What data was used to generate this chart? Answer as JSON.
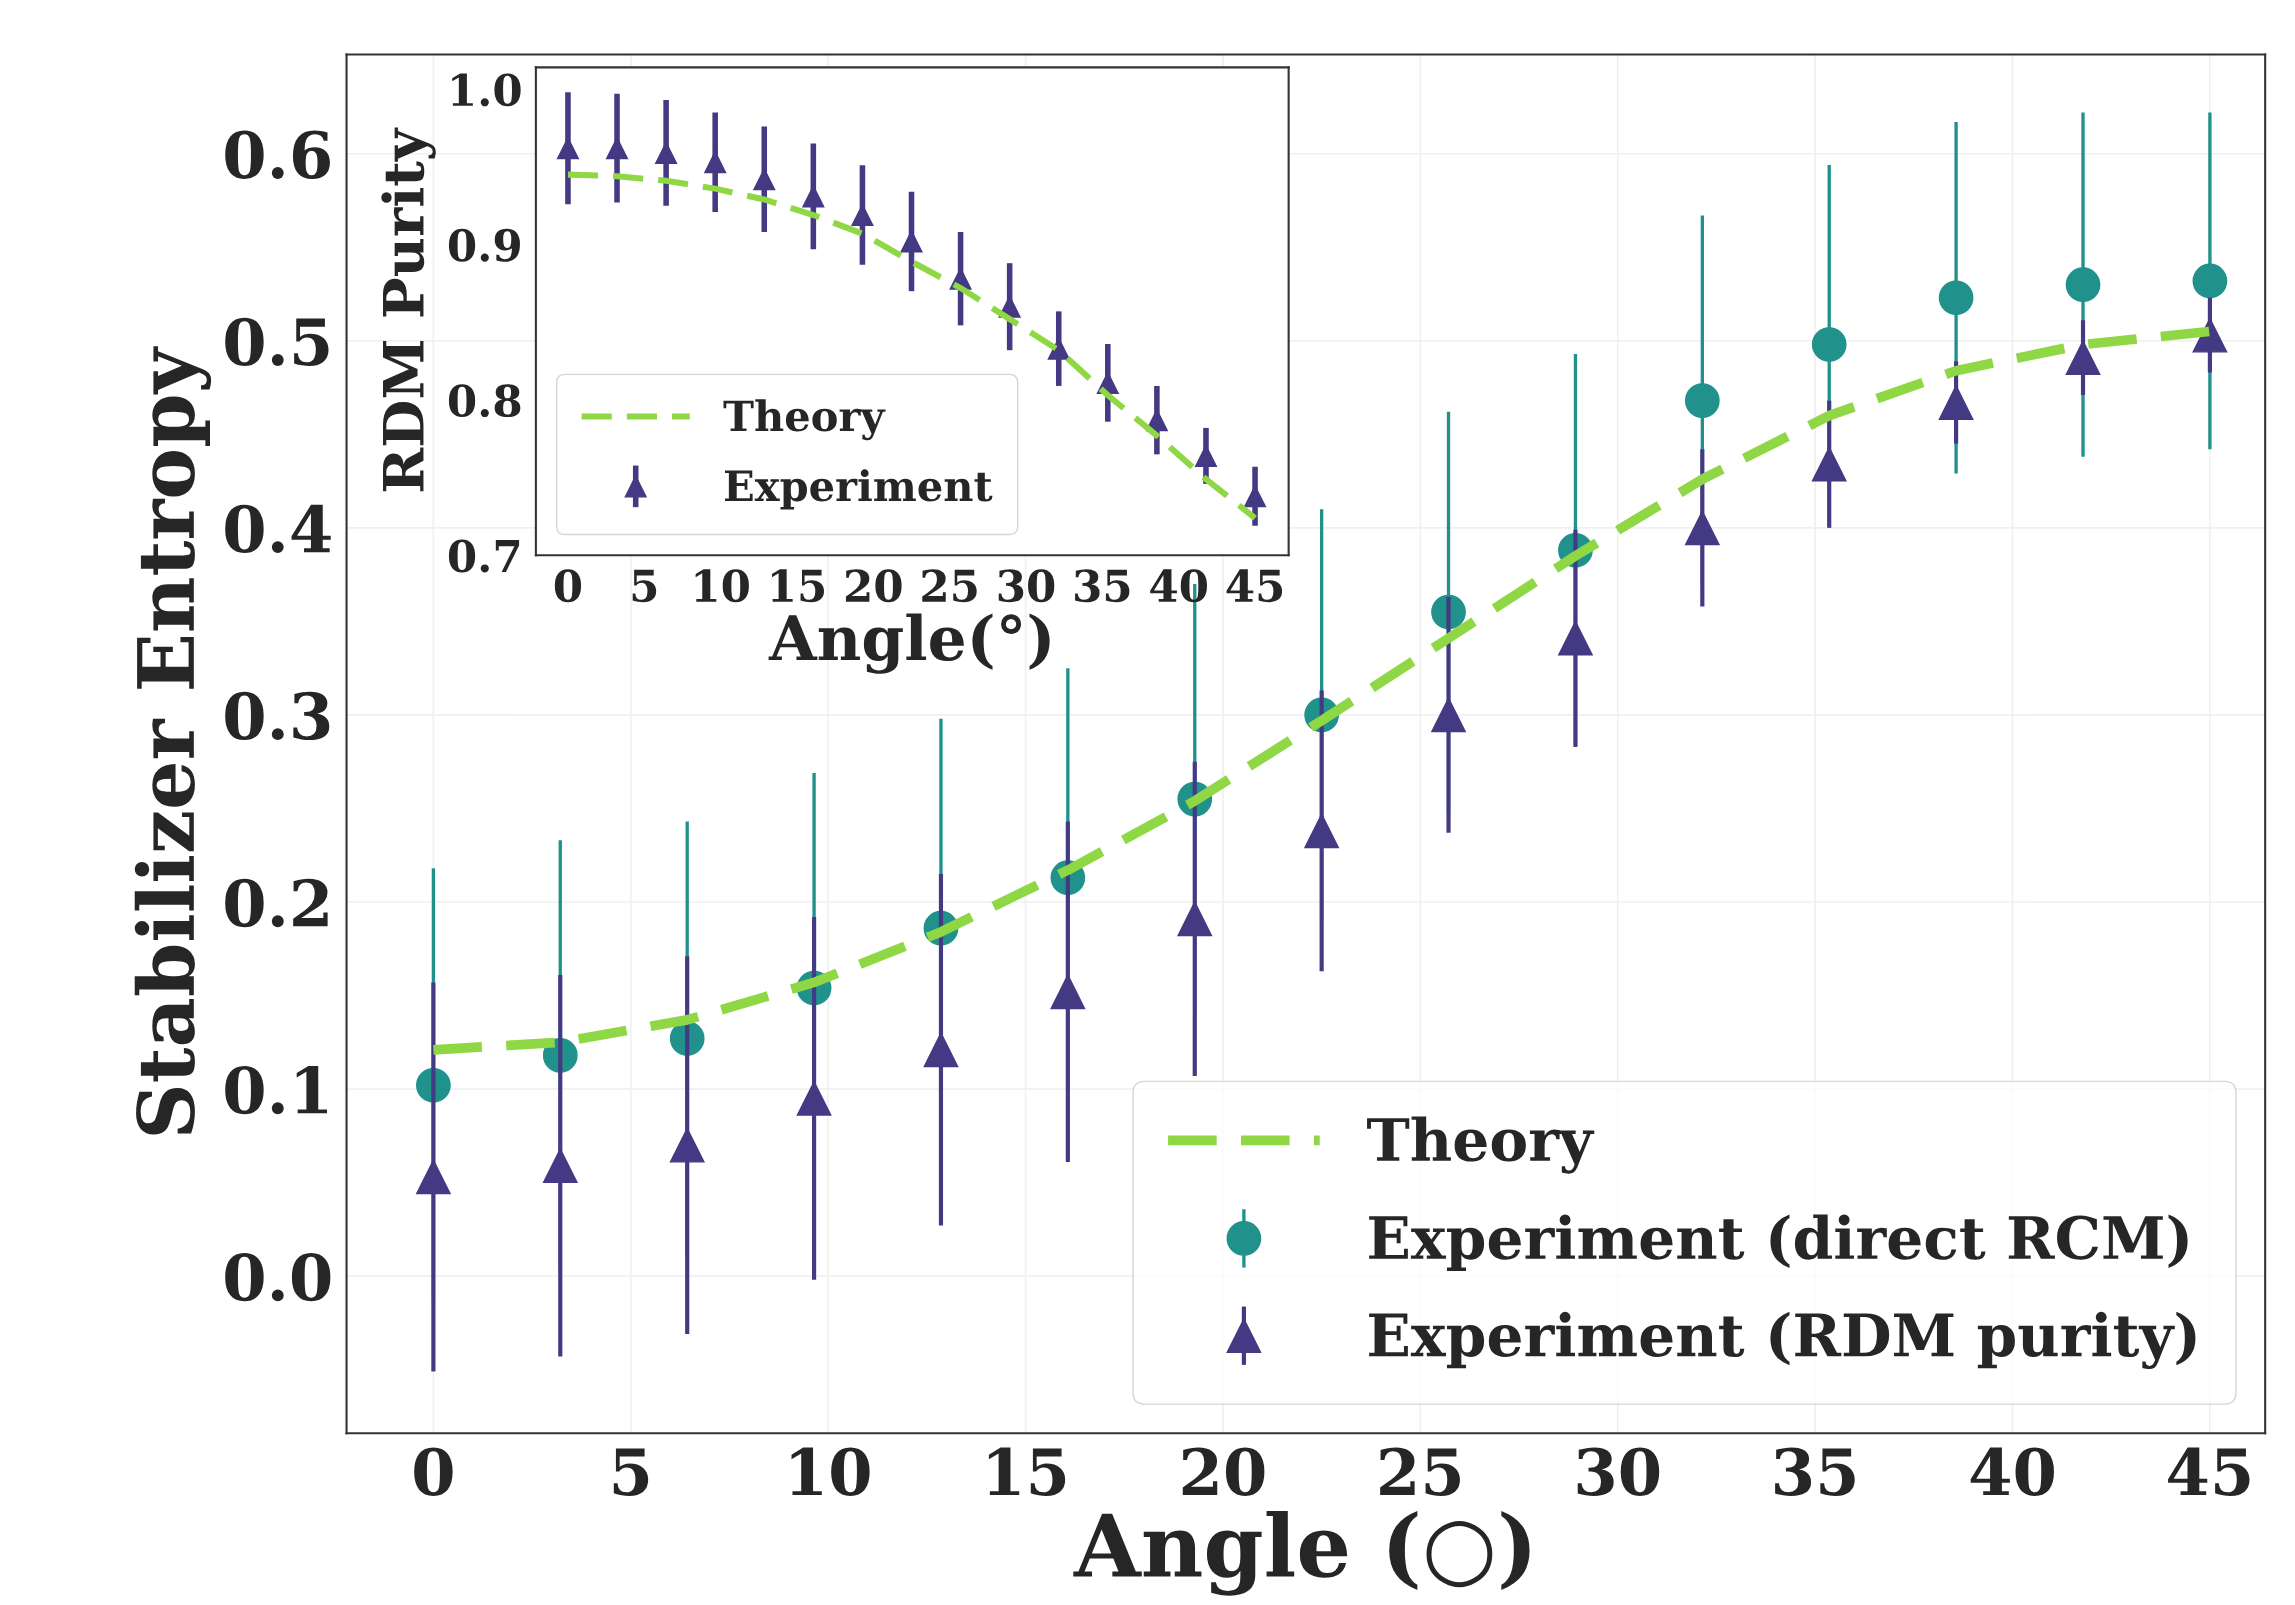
{
  "chart_data": [
    {
      "type": "scatter",
      "xlabel": "Angle (○)",
      "ylabel": "Stabilizer Entropy",
      "xlim": [
        -2.2,
        46.4
      ],
      "ylim": [
        -0.084,
        0.653
      ],
      "xticks": [
        0,
        5,
        10,
        15,
        20,
        25,
        30,
        35,
        40,
        45
      ],
      "yticks": [
        {
          "value": 0,
          "label": "0.0"
        },
        0.1,
        0.2,
        0.3,
        0.4,
        0.5,
        0.6
      ],
      "grid": true,
      "legend": "bottom right",
      "x": [
        0,
        3.214,
        6.429,
        9.643,
        12.857,
        16.071,
        19.286,
        22.5,
        25.714,
        28.929,
        32.143,
        35.357,
        38.571,
        41.786,
        45
      ],
      "series": [
        {
          "name": "Theory",
          "type": "line",
          "line_style": "dashed",
          "marker": "none",
          "color": "#8fd744",
          "values": [
            0.121,
            0.125,
            0.137,
            0.157,
            0.184,
            0.217,
            0.254,
            0.297,
            0.341,
            0.385,
            0.426,
            0.46,
            0.484,
            0.498,
            0.505
          ]
        },
        {
          "name": "Experiment (direct RCM)",
          "type": "scatter",
          "marker": "circle",
          "color": "#21918c",
          "values": [
            0.102,
            0.118,
            0.127,
            0.154,
            0.186,
            0.213,
            0.255,
            0.3,
            0.355,
            0.388,
            0.468,
            0.498,
            0.523,
            0.53,
            0.532
          ],
          "errors": [
            0.116,
            0.115,
            0.116,
            0.115,
            0.112,
            0.112,
            0.115,
            0.11,
            0.107,
            0.105,
            0.099,
            0.096,
            0.094,
            0.092,
            0.09
          ]
        },
        {
          "name": "Experiment (RDM purity)",
          "type": "scatter",
          "marker": "triangle",
          "color": "#443983",
          "values": [
            0.053,
            0.059,
            0.07,
            0.095,
            0.121,
            0.152,
            0.191,
            0.238,
            0.3,
            0.341,
            0.4,
            0.434,
            0.467,
            0.491,
            0.503
          ],
          "errors": [
            0.104,
            0.102,
            0.101,
            0.097,
            0.094,
            0.091,
            0.084,
            0.075,
            0.063,
            0.058,
            0.042,
            0.034,
            0.022,
            0.02,
            0.02
          ]
        }
      ]
    },
    {
      "type": "scatter",
      "xlabel": "Angle(°)",
      "ylabel": "RDM Purity",
      "xlim": [
        -2.1,
        47.2
      ],
      "ylim": [
        0.7,
        1.014
      ],
      "xticks": [
        0,
        5,
        10,
        15,
        20,
        25,
        30,
        35,
        40,
        45
      ],
      "yticks": [
        0.7,
        0.8,
        0.9,
        {
          "value": 1,
          "label": "1.0"
        }
      ],
      "grid": false,
      "legend": "bottom left",
      "x": [
        0,
        3.214,
        6.429,
        9.643,
        12.857,
        16.071,
        19.286,
        22.5,
        25.714,
        28.929,
        32.143,
        35.357,
        38.571,
        41.786,
        45
      ],
      "series": [
        {
          "name": "Theory",
          "type": "line",
          "line_style": "dashed",
          "marker": "none",
          "color": "#8fd744",
          "values": [
            0.945,
            0.944,
            0.941,
            0.936,
            0.929,
            0.919,
            0.907,
            0.889,
            0.872,
            0.852,
            0.832,
            0.803,
            0.777,
            0.749,
            0.724
          ]
        },
        {
          "name": "Experiment",
          "type": "scatter",
          "marker": "triangle",
          "color": "#443983",
          "values": [
            0.962,
            0.962,
            0.959,
            0.953,
            0.942,
            0.931,
            0.919,
            0.902,
            0.878,
            0.86,
            0.833,
            0.811,
            0.787,
            0.764,
            0.738
          ],
          "errors": [
            0.036,
            0.035,
            0.034,
            0.032,
            0.034,
            0.034,
            0.032,
            0.032,
            0.03,
            0.028,
            0.024,
            0.025,
            0.022,
            0.018,
            0.019
          ]
        }
      ]
    }
  ]
}
